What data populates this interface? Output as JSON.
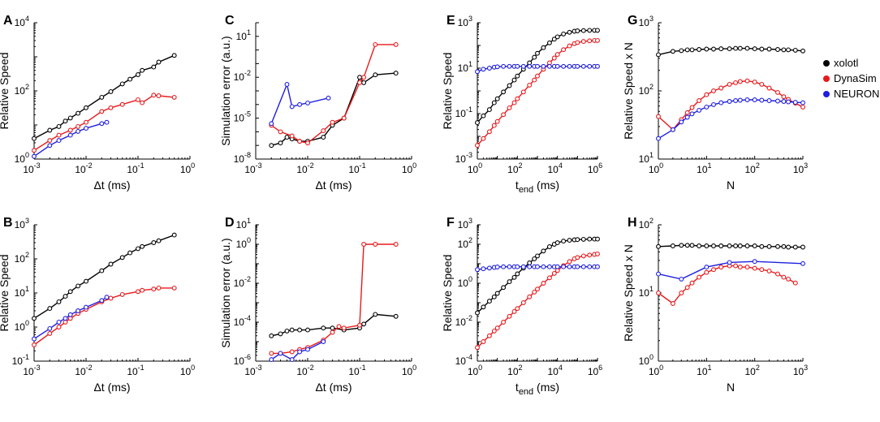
{
  "colors": {
    "xolotl": "#000000",
    "DynaSim": "#e8191c",
    "NEURON": "#1f1fe0"
  },
  "legend": [
    {
      "name": "xolotl",
      "color": "#000000"
    },
    {
      "name": "DynaSim",
      "color": "#e8191c"
    },
    {
      "name": "NEURON",
      "color": "#1f1fe0"
    }
  ],
  "chart_data": [
    {
      "letter": "A",
      "type": "line",
      "xlabel": "Δt (ms)",
      "ylabel": "Relative Speed",
      "xlim_exp": [
        -3,
        0
      ],
      "ylim_exp": [
        0,
        4
      ],
      "xticks": [
        -3,
        -2,
        -1,
        0
      ],
      "yticks": [
        0,
        2,
        4
      ],
      "series": [
        {
          "name": "xolotl",
          "x": [
            0.001,
            0.002,
            0.003,
            0.004,
            0.005,
            0.007,
            0.01,
            0.02,
            0.03,
            0.05,
            0.07,
            0.1,
            0.12,
            0.2,
            0.25,
            0.5
          ],
          "y": [
            4,
            7,
            9,
            13,
            16,
            22,
            32,
            65,
            95,
            160,
            220,
            300,
            400,
            500,
            700,
            1100
          ]
        },
        {
          "name": "DynaSim",
          "x": [
            0.001,
            0.002,
            0.003,
            0.005,
            0.007,
            0.01,
            0.02,
            0.03,
            0.05,
            0.1,
            0.12,
            0.2,
            0.25,
            0.5
          ],
          "y": [
            1.8,
            3.5,
            5,
            7,
            9,
            12,
            25,
            32,
            40,
            55,
            45,
            75,
            72,
            65
          ]
        },
        {
          "name": "NEURON",
          "x": [
            0.001,
            0.002,
            0.003,
            0.005,
            0.007,
            0.01,
            0.02,
            0.025
          ],
          "y": [
            1.2,
            2.5,
            3.5,
            5,
            6.5,
            8,
            11,
            12
          ]
        }
      ]
    },
    {
      "letter": "B",
      "type": "line",
      "xlabel": "Δt (ms)",
      "ylabel": "Relative Speed",
      "xlim_exp": [
        -3,
        0
      ],
      "ylim_exp": [
        -1,
        3
      ],
      "xticks": [
        -3,
        -2,
        -1,
        0
      ],
      "yticks": [
        -1,
        0,
        1,
        2,
        3
      ],
      "series": [
        {
          "name": "xolotl",
          "x": [
            0.001,
            0.002,
            0.003,
            0.004,
            0.005,
            0.007,
            0.01,
            0.02,
            0.03,
            0.05,
            0.07,
            0.1,
            0.12,
            0.2,
            0.25,
            0.5
          ],
          "y": [
            1.8,
            3.5,
            5.5,
            8,
            11,
            16,
            22,
            45,
            70,
            110,
            150,
            200,
            230,
            300,
            340,
            500
          ]
        },
        {
          "name": "DynaSim",
          "x": [
            0.001,
            0.002,
            0.003,
            0.004,
            0.005,
            0.007,
            0.01,
            0.02,
            0.03,
            0.05,
            0.1,
            0.12,
            0.2,
            0.25,
            0.5
          ],
          "y": [
            0.3,
            0.65,
            1,
            1.4,
            1.8,
            2.5,
            3.3,
            5.5,
            7,
            9,
            11,
            12,
            13,
            14,
            14
          ]
        },
        {
          "name": "NEURON",
          "x": [
            0.001,
            0.002,
            0.003,
            0.004,
            0.005,
            0.007,
            0.01,
            0.02,
            0.025
          ],
          "y": [
            0.45,
            0.9,
            1.4,
            1.8,
            2.3,
            3,
            3.8,
            6,
            7.5
          ]
        }
      ]
    },
    {
      "letter": "C",
      "type": "line",
      "xlabel": "Δt (ms)",
      "ylabel": "Simulation error (a.u.)",
      "xlim_exp": [
        -3,
        0
      ],
      "ylim_exp": [
        -8,
        2
      ],
      "xticks": [
        -3,
        -2,
        -1,
        0
      ],
      "yticks": [
        -8,
        -5,
        -2,
        1
      ],
      "series": [
        {
          "name": "xolotl",
          "x": [
            0.002,
            0.003,
            0.004,
            0.005,
            0.007,
            0.01,
            0.02,
            0.03,
            0.05,
            0.1,
            0.12,
            0.2,
            0.5
          ],
          "y": [
            1e-07,
            1.5e-07,
            4e-07,
            3e-07,
            2e-07,
            2e-07,
            4e-07,
            3e-06,
            1e-05,
            0.01,
            0.004,
            0.015,
            0.02
          ]
        },
        {
          "name": "DynaSim",
          "x": [
            0.002,
            0.003,
            0.005,
            0.007,
            0.01,
            0.02,
            0.03,
            0.05,
            0.1,
            0.12,
            0.2,
            0.5
          ],
          "y": [
            3e-06,
            1e-06,
            5e-07,
            2e-07,
            1.5e-07,
            1.2e-06,
            5e-06,
            1e-05,
            0.004,
            0.01,
            2.5,
            2.5
          ]
        },
        {
          "name": "NEURON",
          "x": [
            0.002,
            0.004,
            0.005,
            0.007,
            0.01,
            0.025
          ],
          "y": [
            4e-06,
            0.003,
            7e-05,
            0.0001,
            0.00013,
            0.0003
          ]
        }
      ]
    },
    {
      "letter": "D",
      "type": "line",
      "xlabel": "Δt (ms)",
      "ylabel": "Simulation error (a.u.)",
      "xlim_exp": [
        -3,
        0
      ],
      "ylim_exp": [
        -6,
        1
      ],
      "xticks": [
        -3,
        -2,
        -1,
        0
      ],
      "yticks": [
        -6,
        -4,
        -2,
        0,
        1
      ],
      "series": [
        {
          "name": "xolotl",
          "x": [
            0.002,
            0.003,
            0.004,
            0.005,
            0.007,
            0.01,
            0.02,
            0.03,
            0.05,
            0.1,
            0.12,
            0.2,
            0.5
          ],
          "y": [
            2e-05,
            2.5e-05,
            3.5e-05,
            4e-05,
            4e-05,
            4e-05,
            5e-05,
            5e-05,
            4e-05,
            5e-05,
            8e-05,
            0.00025,
            0.0002
          ]
        },
        {
          "name": "DynaSim",
          "x": [
            0.002,
            0.003,
            0.005,
            0.007,
            0.01,
            0.02,
            0.03,
            0.04,
            0.05,
            0.1,
            0.12,
            0.2,
            0.5
          ],
          "y": [
            2.5e-06,
            2.5e-06,
            3e-06,
            4e-06,
            5e-06,
            1.2e-05,
            3e-05,
            6e-05,
            5e-05,
            7e-05,
            1,
            1,
            1
          ]
        },
        {
          "name": "NEURON",
          "x": [
            0.002,
            0.003,
            0.005,
            0.007,
            0.01,
            0.02
          ],
          "y": [
            1.2e-06,
            2.5e-06,
            1.2e-06,
            3e-06,
            4e-06,
            1e-05
          ]
        }
      ]
    },
    {
      "letter": "E",
      "type": "line",
      "xlabel": "t",
      "xlabel_sub": "end",
      "xlabel_tail": " (ms)",
      "ylabel": "Relative Speed",
      "xlim_exp": [
        0,
        6
      ],
      "ylim_exp": [
        -3,
        3
      ],
      "xticks": [
        0,
        2,
        4,
        6
      ],
      "yticks": [
        -3,
        -1,
        1,
        3
      ],
      "series": [
        {
          "name": "xolotl",
          "x": [
            1,
            2,
            4,
            7,
            10,
            20,
            40,
            70,
            100,
            200,
            400,
            700,
            1000,
            2000,
            4000,
            7000,
            10000,
            20000,
            40000,
            70000,
            100000,
            200000,
            400000,
            700000,
            1000000
          ],
          "y": [
            0.04,
            0.08,
            0.15,
            0.3,
            0.45,
            0.9,
            1.7,
            3,
            4.5,
            9,
            17,
            30,
            45,
            80,
            130,
            190,
            240,
            320,
            380,
            420,
            440,
            450,
            460,
            460,
            460
          ]
        },
        {
          "name": "DynaSim",
          "x": [
            1,
            2,
            4,
            7,
            10,
            20,
            40,
            70,
            100,
            200,
            400,
            700,
            1000,
            2000,
            4000,
            7000,
            10000,
            20000,
            40000,
            70000,
            100000,
            200000,
            400000,
            700000,
            1000000
          ],
          "y": [
            0.004,
            0.008,
            0.016,
            0.03,
            0.045,
            0.09,
            0.18,
            0.3,
            0.45,
            0.9,
            1.8,
            3,
            4.5,
            9,
            17,
            28,
            40,
            65,
            95,
            120,
            135,
            150,
            160,
            165,
            165
          ]
        },
        {
          "name": "NEURON",
          "x": [
            1,
            2,
            4,
            7,
            10,
            20,
            40,
            70,
            100,
            200,
            400,
            700,
            1000,
            2000,
            4000,
            7000,
            10000,
            20000,
            40000,
            70000,
            100000,
            200000,
            400000,
            700000,
            1000000
          ],
          "y": [
            7,
            9,
            10,
            11,
            11.5,
            12,
            12,
            12,
            12,
            12,
            12,
            12,
            12,
            12,
            12,
            12,
            12,
            12,
            12,
            12,
            12,
            12,
            12,
            12,
            12
          ]
        }
      ]
    },
    {
      "letter": "F",
      "type": "line",
      "xlabel": "t",
      "xlabel_sub": "end",
      "xlabel_tail": " (ms)",
      "ylabel": "Relative Speed",
      "xlim_exp": [
        0,
        6
      ],
      "ylim_exp": [
        -4,
        3
      ],
      "xticks": [
        0,
        2,
        4,
        6
      ],
      "yticks": [
        -4,
        -2,
        0,
        2,
        3
      ],
      "series": [
        {
          "name": "xolotl",
          "x": [
            1,
            2,
            4,
            7,
            10,
            20,
            40,
            70,
            100,
            200,
            400,
            700,
            1000,
            2000,
            4000,
            7000,
            10000,
            20000,
            40000,
            70000,
            100000,
            200000,
            400000,
            700000,
            1000000
          ],
          "y": [
            0.03,
            0.06,
            0.12,
            0.2,
            0.3,
            0.6,
            1.2,
            2,
            3,
            6,
            11,
            18,
            25,
            45,
            75,
            100,
            120,
            145,
            160,
            170,
            175,
            180,
            185,
            185,
            185
          ]
        },
        {
          "name": "DynaSim",
          "x": [
            1,
            2,
            4,
            7,
            10,
            20,
            40,
            70,
            100,
            200,
            400,
            700,
            1000,
            2000,
            4000,
            7000,
            10000,
            20000,
            40000,
            70000,
            100000,
            200000,
            400000,
            700000,
            1000000
          ],
          "y": [
            0.0005,
            0.001,
            0.002,
            0.0035,
            0.005,
            0.01,
            0.02,
            0.035,
            0.05,
            0.1,
            0.2,
            0.35,
            0.5,
            1,
            1.9,
            3.2,
            4.5,
            8,
            13,
            18,
            21,
            25,
            28,
            30,
            32
          ]
        },
        {
          "name": "NEURON",
          "x": [
            1,
            2,
            4,
            7,
            10,
            20,
            40,
            70,
            100,
            200,
            400,
            700,
            1000,
            2000,
            4000,
            7000,
            10000,
            20000,
            40000,
            70000,
            100000,
            200000,
            400000,
            700000,
            1000000
          ],
          "y": [
            5,
            5.5,
            6,
            6.5,
            6.8,
            7,
            7,
            7,
            7,
            7,
            7,
            7,
            7,
            7,
            7,
            7,
            7,
            7,
            7,
            7,
            7,
            7,
            7,
            7,
            7
          ]
        }
      ]
    },
    {
      "letter": "G",
      "type": "line",
      "xlabel": "N",
      "ylabel": "Relative Speed x N",
      "xlim_exp": [
        0,
        3
      ],
      "ylim_exp": [
        1,
        3
      ],
      "xticks": [
        0,
        1,
        2,
        3
      ],
      "yticks": [
        1,
        2,
        3
      ],
      "series": [
        {
          "name": "xolotl",
          "x": [
            1,
            2,
            3,
            4,
            5,
            7,
            10,
            14,
            20,
            30,
            40,
            50,
            70,
            100,
            140,
            200,
            300,
            400,
            500,
            700,
            1000
          ],
          "y": [
            340,
            380,
            390,
            400,
            400,
            405,
            410,
            410,
            415,
            415,
            420,
            420,
            420,
            415,
            410,
            410,
            405,
            400,
            400,
            395,
            385
          ]
        },
        {
          "name": "DynaSim",
          "x": [
            1,
            2,
            3,
            4,
            5,
            7,
            10,
            14,
            20,
            30,
            40,
            50,
            70,
            100,
            140,
            200,
            300,
            400,
            500,
            700,
            1000
          ],
          "y": [
            42,
            27,
            38,
            48,
            57,
            72,
            88,
            100,
            110,
            125,
            132,
            137,
            140,
            135,
            125,
            110,
            95,
            82,
            75,
            66,
            58
          ]
        },
        {
          "name": "NEURON",
          "x": [
            1,
            2,
            3,
            4,
            5,
            7,
            10,
            14,
            20,
            30,
            40,
            50,
            70,
            100,
            140,
            200,
            300,
            400,
            500,
            700,
            1000
          ],
          "y": [
            20,
            27,
            35,
            41,
            46,
            52,
            58,
            63,
            67,
            70,
            72,
            73,
            74,
            74,
            73,
            72,
            71,
            70,
            69,
            68,
            67
          ]
        }
      ]
    },
    {
      "letter": "H",
      "type": "line",
      "xlabel": "N",
      "ylabel": "Relative Speed x N",
      "xlim_exp": [
        0,
        3
      ],
      "ylim_exp": [
        0,
        2
      ],
      "xticks": [
        0,
        1,
        2,
        3
      ],
      "yticks": [
        0,
        1,
        2
      ],
      "series": [
        {
          "name": "xolotl",
          "x": [
            1,
            2,
            3,
            4,
            5,
            7,
            10,
            14,
            20,
            30,
            40,
            50,
            70,
            100,
            140,
            200,
            300,
            400,
            500,
            700,
            1000
          ],
          "y": [
            48,
            49,
            50,
            50,
            50,
            49,
            49,
            49,
            49,
            49,
            49,
            49,
            49,
            49,
            48,
            48,
            48,
            48,
            47,
            47,
            47
          ]
        },
        {
          "name": "DynaSim",
          "x": [
            1,
            2,
            3,
            4,
            5,
            7,
            10,
            14,
            20,
            30,
            40,
            50,
            70,
            100,
            140,
            200,
            300,
            400,
            500,
            700
          ],
          "y": [
            10,
            7,
            10,
            12,
            14,
            17,
            20,
            22,
            24,
            25,
            25,
            24,
            24,
            23,
            22,
            21,
            19,
            17,
            16,
            14
          ]
        },
        {
          "name": "NEURON",
          "x": [
            1,
            3,
            10,
            30,
            100,
            1000
          ],
          "y": [
            19,
            16,
            24,
            28,
            29,
            27
          ]
        }
      ]
    }
  ]
}
